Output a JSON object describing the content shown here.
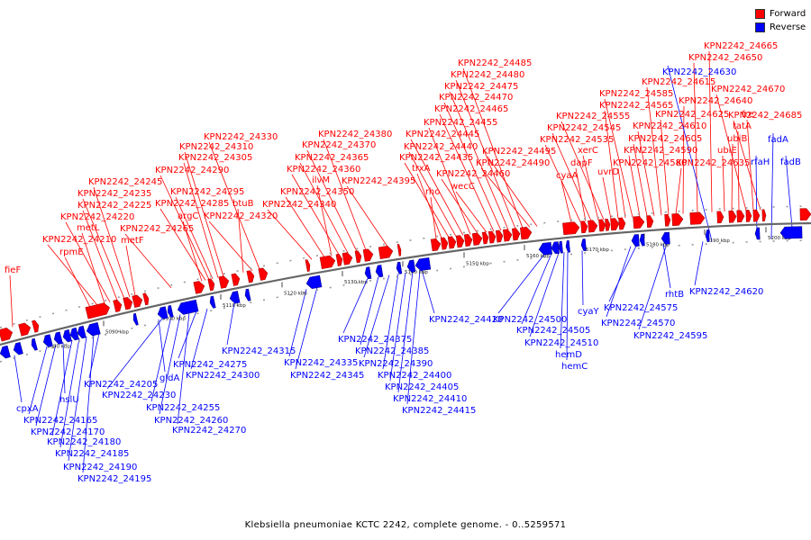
{
  "legend": {
    "forward_label": "Forward",
    "reverse_label": "Reverse",
    "forward_color": "#ff0000",
    "reverse_color": "#0000ff"
  },
  "caption": "Klebsiella pneumoniae KCTC 2242, complete genome. - 0..5259571",
  "colors": {
    "forward": "#ff0000",
    "reverse": "#0000ff",
    "backbone": "#666666",
    "dots": "#999999"
  },
  "ticks": [
    "5080 kbp",
    "5090 kbp",
    "5100 kbp",
    "5110 kbp",
    "5120 kbp",
    "5130 kbp",
    "5140 kbp",
    "5150 kbp",
    "5160 kbp",
    "5170 kbp",
    "5180 kbp",
    "5190 kbp",
    "5200 kbp"
  ],
  "forward_labels": [
    "fieF",
    "rpmE",
    "KPN2242_24210",
    "metL",
    "KPN2242_24220",
    "KPN2242_24225",
    "KPN2242_24235",
    "KPN2242_24245",
    "metF",
    "KPN2242_24265",
    "argC",
    "KPN2242_24285",
    "KPN2242_24290",
    "KPN2242_24295",
    "KPN2242_24305",
    "KPN2242_24310",
    "btuB",
    "KPN2242_24320",
    "KPN2242_24330",
    "KPN2242_24340",
    "KPN2242_24350",
    "ilvM",
    "KPN2242_24360",
    "KPN2242_24365",
    "KPN2242_24370",
    "KPN2242_24380",
    "KPN2242_24395",
    "rho",
    "trxA",
    "KPN2242_24435",
    "KPN2242_24440",
    "KPN2242_24445",
    "KPN2242_24455",
    "KPN2242_24460",
    "wecC",
    "KPN2242_24465",
    "KPN2242_24470",
    "KPN2242_24475",
    "KPN2242_24480",
    "KPN2242_24485",
    "KPN2242_24490",
    "KPN2242_24495",
    "cyaA",
    "KPN2242_24535",
    "dapF",
    "KPN2242_24545",
    "xerC",
    "KPN2242_24555",
    "uvrD",
    "KPN2242_24565",
    "KPN2242_24580",
    "KPN2242_24585",
    "KPN2242_24590",
    "KPN2242_24605",
    "KPN2242_24610",
    "KPN2242_24615",
    "KPN2242_24625",
    "KPN2242_24635",
    "KPN2242_24640",
    "ubiE",
    "KPN2242_24650",
    "ubiB",
    "KPN2242_24665",
    "tatA",
    "KPN2242_24670",
    "fre",
    "KPN2242_24685"
  ],
  "reverse_labels": [
    "cpxA",
    "KPN2242_24165",
    "KPN2242_24170",
    "hslU",
    "KPN2242_24180",
    "KPN2242_24185",
    "KPN2242_24190",
    "KPN2242_24195",
    "KPN2242_24205",
    "gldA",
    "KPN2242_24230",
    "KPN2242_24255",
    "KPN2242_24260",
    "KPN2242_24270",
    "KPN2242_24275",
    "KPN2242_24300",
    "KPN2242_24315",
    "KPN2242_24335",
    "KPN2242_24345",
    "KPN2242_24375",
    "KPN2242_24385",
    "KPN2242_24390",
    "KPN2242_24400",
    "KPN2242_24405",
    "KPN2242_24410",
    "KPN2242_24415",
    "KPN2242_24420",
    "KPN2242_24500",
    "KPN2242_24505",
    "KPN2242_24510",
    "hemD",
    "hemC",
    "cyaY",
    "KPN2242_24570",
    "KPN2242_24575",
    "rhtB",
    "KPN2242_24595",
    "KPN2242_24620",
    "KPN2242_24630",
    "rfaH",
    "fadA",
    "fadB"
  ]
}
